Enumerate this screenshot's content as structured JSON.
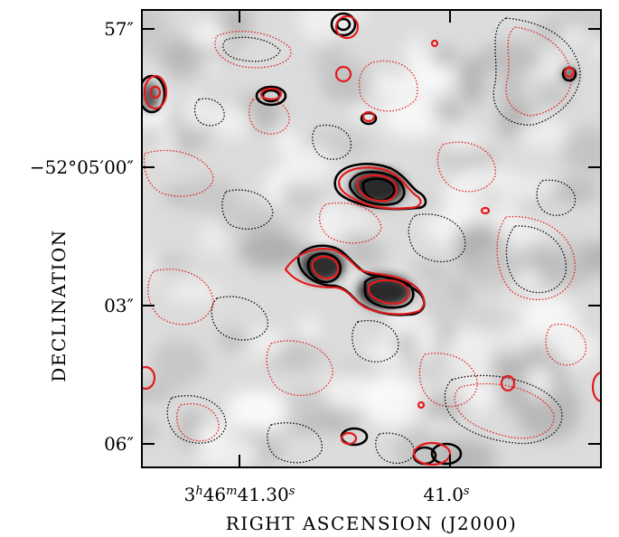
{
  "chart_data": {
    "type": "contour",
    "xlabel": "RIGHT ASCENSION (J2000)",
    "ylabel": "DECLINATION",
    "x_ticks": [
      {
        "label": "3h46m41.30s",
        "h": "3",
        "m": "46",
        "s": "41.30",
        "value": "3:46:41.30"
      },
      {
        "label": "41.0s",
        "num": "41.0",
        "unit": "s",
        "value": "3:46:41.0"
      }
    ],
    "y_ticks": [
      {
        "label": "57″",
        "value": "-52:04:57"
      },
      {
        "label": "−52°05′00″",
        "value": "-52:05:00"
      },
      {
        "label": "03″",
        "value": "-52:05:03"
      },
      {
        "label": "06″",
        "value": "-52:05:06"
      }
    ],
    "background": "grayscale intensity map",
    "series": [
      {
        "style": "solid positive contours",
        "color": "#000000"
      },
      {
        "style": "dotted negative contours",
        "color": "#000000"
      },
      {
        "style": "solid positive contours",
        "color": "#e31a1c"
      },
      {
        "style": "dotted negative contours",
        "color": "#e31a1c"
      }
    ],
    "sources": [
      {
        "name": "upper compact source",
        "ra": "3:46:41.09",
        "dec": "-52:05:00.7"
      },
      {
        "name": "lower-left compact source",
        "ra": "3:46:41.18",
        "dec": "-52:05:02.5"
      },
      {
        "name": "lower-right compact source",
        "ra": "3:46:41.08",
        "dec": "-52:05:03.0"
      }
    ],
    "colors": {
      "positive_black": "#000000",
      "positive_red": "#e31a1c",
      "frame": "#000000"
    }
  }
}
